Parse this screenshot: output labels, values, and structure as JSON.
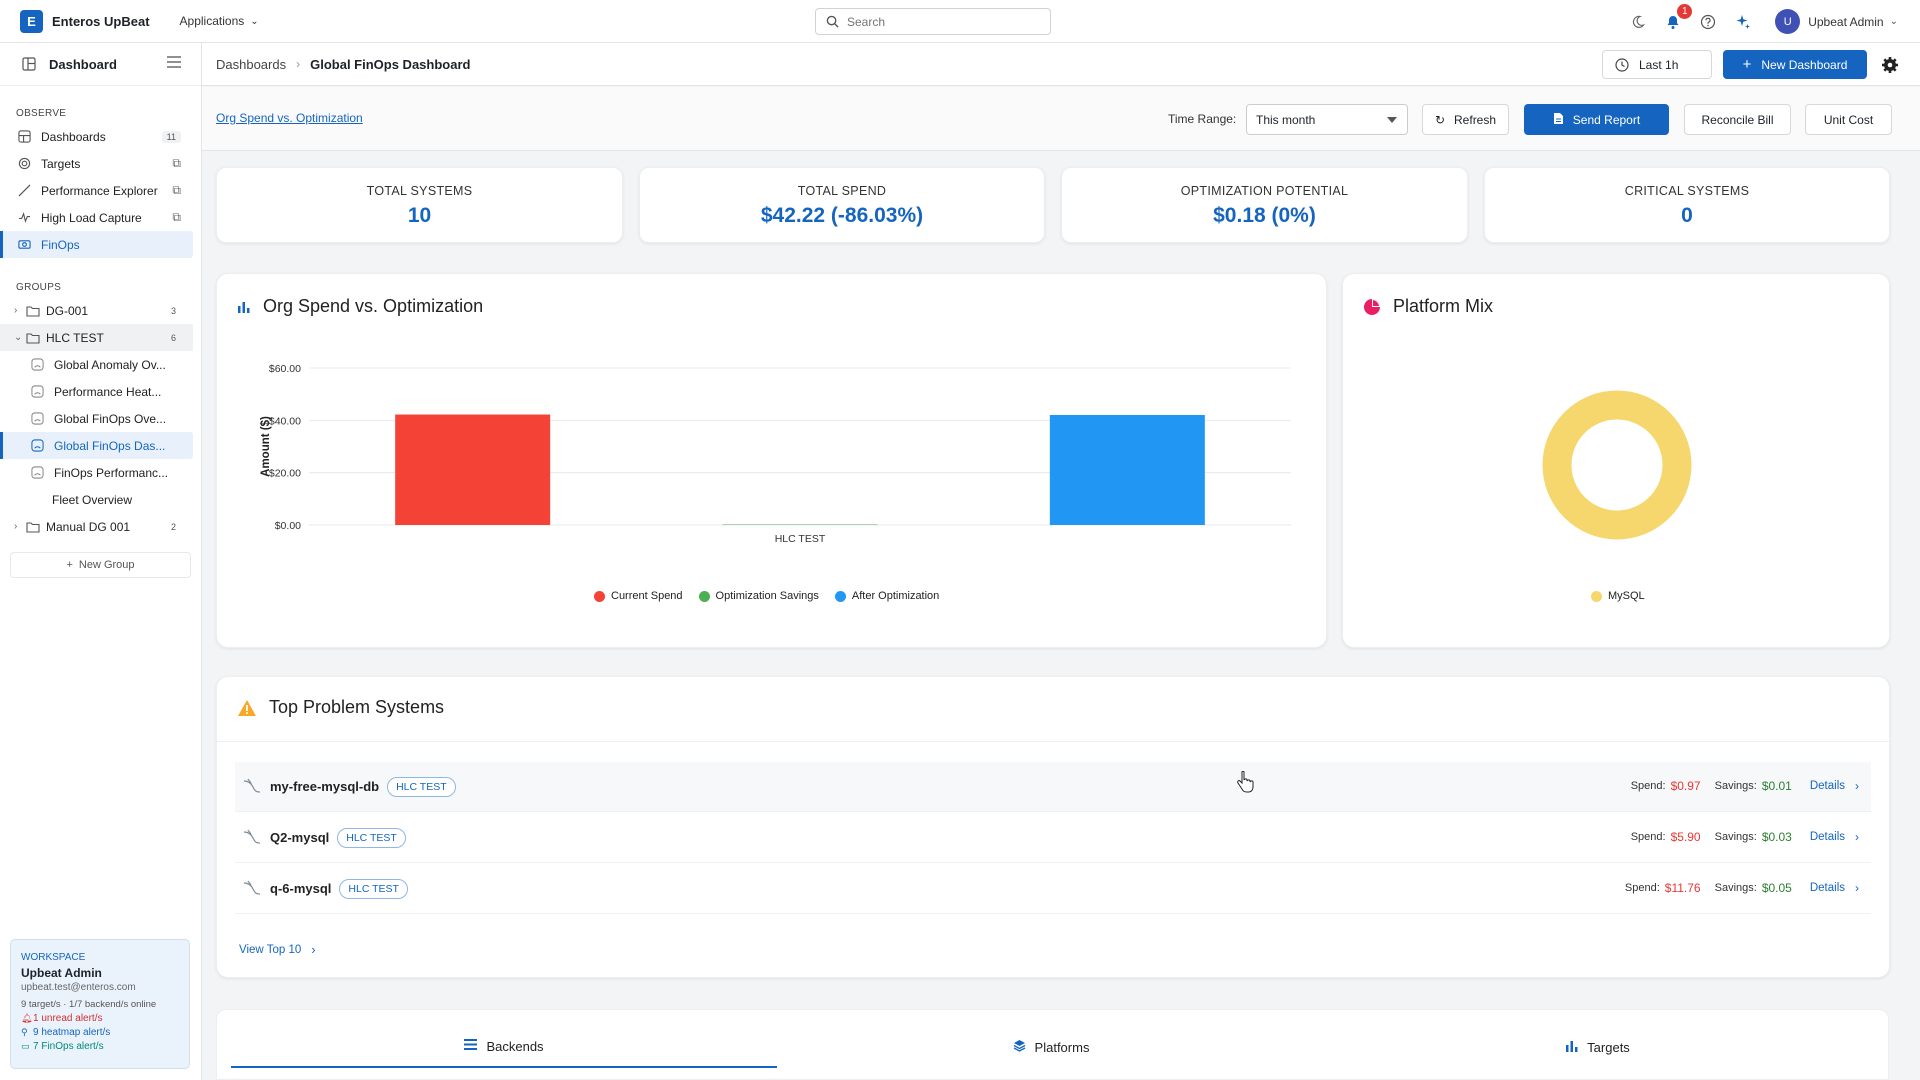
{
  "app": {
    "brand_letter": "E",
    "brand_name": "Enteros UpBeat",
    "apps_menu": "Applications"
  },
  "search": {
    "placeholder": "Search"
  },
  "topbar": {
    "notification_count": "1",
    "user_initial": "U",
    "user_name": "Upbeat Admin"
  },
  "sidebar": {
    "title": "Dashboard",
    "observe_label": "OBSERVE",
    "observe_items": [
      {
        "label": "Dashboards",
        "count": "11"
      },
      {
        "label": "Targets"
      },
      {
        "label": "Performance Explorer"
      },
      {
        "label": "High Load Capture"
      },
      {
        "label": "FinOps"
      }
    ],
    "groups_label": "GROUPS",
    "groups": [
      {
        "label": "DG-001",
        "count": "3"
      },
      {
        "label": "HLC TEST",
        "count": "6"
      },
      {
        "label": "Manual DG 001",
        "count": "2"
      }
    ],
    "children": [
      "Global Anomaly Ov...",
      "Performance Heat...",
      "Global FinOps Ove...",
      "Global FinOps Das...",
      "FinOps Performanc...",
      "Fleet Overview"
    ],
    "new_group": "New Group"
  },
  "workspace": {
    "label": "WORKSPACE",
    "name": "Upbeat Admin",
    "email": "upbeat.test@enteros.com",
    "status": "9 target/s · 1/7 backend/s online",
    "alerts": [
      "1 unread alert/s",
      "9 heatmap alert/s",
      "7 FinOps alert/s"
    ]
  },
  "breadcrumb": {
    "parent": "Dashboards",
    "current": "Global FinOps Dashboard"
  },
  "header": {
    "time_button": "Last 1h",
    "new_dashboard": "New Dashboard"
  },
  "toolbar": {
    "link": "Org Spend vs. Optimization",
    "time_range_label": "Time Range:",
    "time_range_value": "This month",
    "refresh": "Refresh",
    "send_report": "Send Report",
    "reconcile": "Reconcile Bill",
    "unit_cost": "Unit Cost"
  },
  "kpis": [
    {
      "label": "TOTAL SYSTEMS",
      "value": "10"
    },
    {
      "label": "TOTAL SPEND",
      "value": "$42.22 (-86.03%)"
    },
    {
      "label": "OPTIMIZATION POTENTIAL",
      "value": "$0.18 (0%)"
    },
    {
      "label": "CRITICAL SYSTEMS",
      "value": "0"
    }
  ],
  "colors": {
    "accent": "#1565c0",
    "current_spend": "#f44336",
    "savings": "#4caf50",
    "after_opt": "#2196f3",
    "mysql": "#f5d76e"
  },
  "chart_data": [
    {
      "type": "bar",
      "title": "Org Spend vs. Optimization",
      "categories": [
        "HLC TEST"
      ],
      "series": [
        {
          "name": "Current Spend",
          "values": [
            42.22
          ]
        },
        {
          "name": "Optimization Savings",
          "values": [
            0.18
          ]
        },
        {
          "name": "After Optimization",
          "values": [
            42.04
          ]
        }
      ],
      "ylabel": "Amount ($)",
      "ylim": [
        0,
        60
      ],
      "yticks": [
        "$0.00",
        "$20.00",
        "$40.00",
        "$60.00"
      ],
      "ytick_values": [
        0,
        20,
        40,
        60
      ],
      "grid": true,
      "legend": "bottom"
    },
    {
      "type": "pie",
      "title": "Platform Mix",
      "labels": [
        "MySQL"
      ],
      "values": [
        100
      ],
      "donut": true,
      "legend": "bottom"
    }
  ],
  "problems": {
    "title": "Top Problem Systems",
    "spend_label": "Spend:",
    "savings_label": "Savings:",
    "details_label": "Details",
    "rows": [
      {
        "name": "my-free-mysql-db",
        "tag": "HLC TEST",
        "spend": "$0.97",
        "savings": "$0.01"
      },
      {
        "name": "Q2-mysql",
        "tag": "HLC TEST",
        "spend": "$5.90",
        "savings": "$0.03"
      },
      {
        "name": "q-6-mysql",
        "tag": "HLC TEST",
        "spend": "$11.76",
        "savings": "$0.05"
      }
    ],
    "view_top": "View Top 10"
  },
  "tabs": [
    "Backends",
    "Platforms",
    "Targets"
  ]
}
